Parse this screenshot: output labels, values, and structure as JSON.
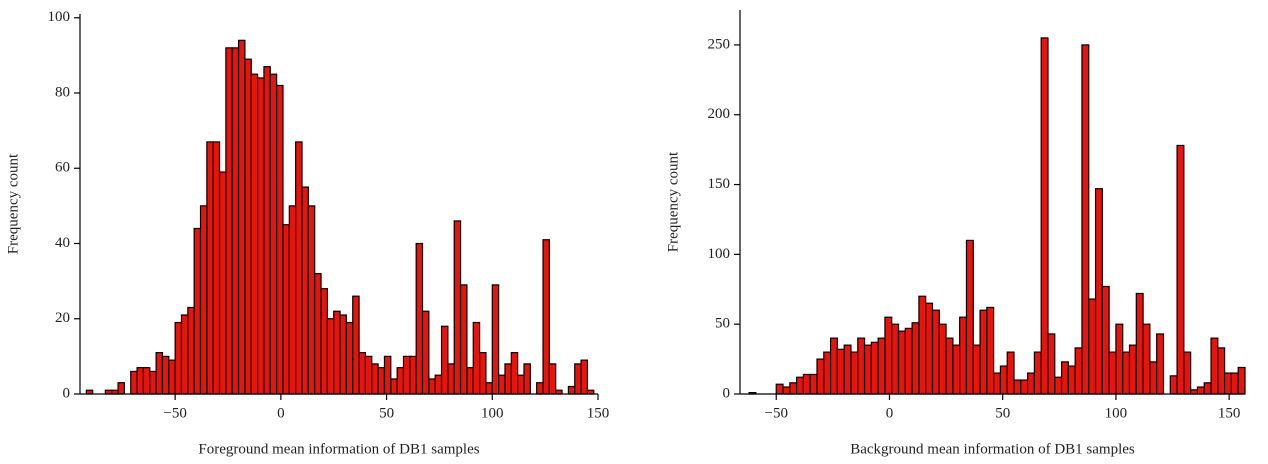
{
  "chart_data": [
    {
      "type": "histogram",
      "xlabel": "Foreground mean information of DB1 samples",
      "ylabel": "Frequency count",
      "color": "#e8140c",
      "edgecolor": "#000000",
      "bins": [
        -92,
        -89,
        -86,
        -83,
        -80,
        -77,
        -74,
        -71,
        -68,
        -65,
        -62,
        -59,
        -56,
        -53,
        -50,
        -47,
        -44,
        -41,
        -38,
        -35,
        -32,
        -29,
        -26,
        -23,
        -20,
        -17,
        -14,
        -11,
        -8,
        -5,
        -2,
        1,
        4,
        7,
        10,
        13,
        16,
        19,
        22,
        25,
        28,
        31,
        34,
        37,
        40,
        43,
        46,
        49,
        52,
        55,
        58,
        61,
        64,
        67,
        70,
        73,
        76,
        79,
        82,
        85,
        88,
        91,
        94,
        97,
        100,
        103,
        106,
        109,
        112,
        115,
        118,
        121,
        124,
        127,
        130,
        133,
        136,
        139,
        142,
        145,
        148
      ],
      "values": [
        1,
        0,
        0,
        1,
        1,
        3,
        0,
        6,
        7,
        7,
        6,
        11,
        10,
        9,
        19,
        21,
        23,
        44,
        50,
        67,
        67,
        59,
        92,
        92,
        94,
        89,
        85,
        84,
        87,
        85,
        82,
        45,
        50,
        67,
        55,
        50,
        32,
        28,
        20,
        22,
        21,
        19,
        26,
        11,
        10,
        8,
        7,
        10,
        4,
        7,
        10,
        10,
        40,
        22,
        4,
        5,
        18,
        8,
        46,
        29,
        7,
        19,
        11,
        3,
        29,
        5,
        8,
        11,
        5,
        8,
        0,
        3,
        41,
        8,
        1,
        0,
        2,
        8,
        9,
        1
      ],
      "xlim": [
        -95,
        150
      ],
      "ylim": [
        0,
        101
      ],
      "xticks": [
        {
          "value": -50,
          "label": "−50"
        },
        0,
        50,
        100,
        150
      ],
      "yticks": [
        0,
        20,
        40,
        60,
        80,
        100
      ]
    },
    {
      "type": "histogram",
      "xlabel": "Background mean information of DB1 samples",
      "ylabel": "Frequency count",
      "color": "#e8140c",
      "edgecolor": "#000000",
      "bins": [
        -62,
        -59,
        -56,
        -53,
        -50,
        -47,
        -44,
        -41,
        -38,
        -35,
        -32,
        -29,
        -26,
        -23,
        -20,
        -17,
        -14,
        -11,
        -8,
        -5,
        -2,
        1,
        4,
        7,
        10,
        13,
        16,
        19,
        22,
        25,
        28,
        31,
        34,
        37,
        40,
        43,
        46,
        49,
        52,
        55,
        58,
        61,
        64,
        67,
        70,
        73,
        76,
        79,
        82,
        85,
        88,
        91,
        94,
        97,
        100,
        103,
        106,
        109,
        112,
        115,
        118,
        121,
        124,
        127,
        130,
        133,
        136,
        139,
        142,
        145,
        148,
        151,
        154,
        157
      ],
      "values": [
        1,
        0,
        0,
        0,
        7,
        5,
        8,
        12,
        14,
        14,
        25,
        30,
        40,
        32,
        35,
        30,
        40,
        35,
        37,
        40,
        55,
        50,
        45,
        47,
        51,
        70,
        65,
        60,
        50,
        40,
        35,
        55,
        110,
        35,
        60,
        62,
        15,
        20,
        30,
        10,
        10,
        15,
        30,
        255,
        43,
        12,
        23,
        20,
        33,
        250,
        68,
        147,
        77,
        30,
        50,
        30,
        35,
        72,
        50,
        23,
        43,
        0,
        13,
        178,
        30,
        3,
        5,
        8,
        40,
        33,
        15,
        15,
        19
      ],
      "xlim": [
        -66,
        157
      ],
      "ylim": [
        0,
        275
      ],
      "xticks": [
        {
          "value": -50,
          "label": "−50"
        },
        0,
        50,
        100,
        150
      ],
      "yticks": [
        0,
        50,
        100,
        150,
        200,
        250
      ]
    }
  ]
}
